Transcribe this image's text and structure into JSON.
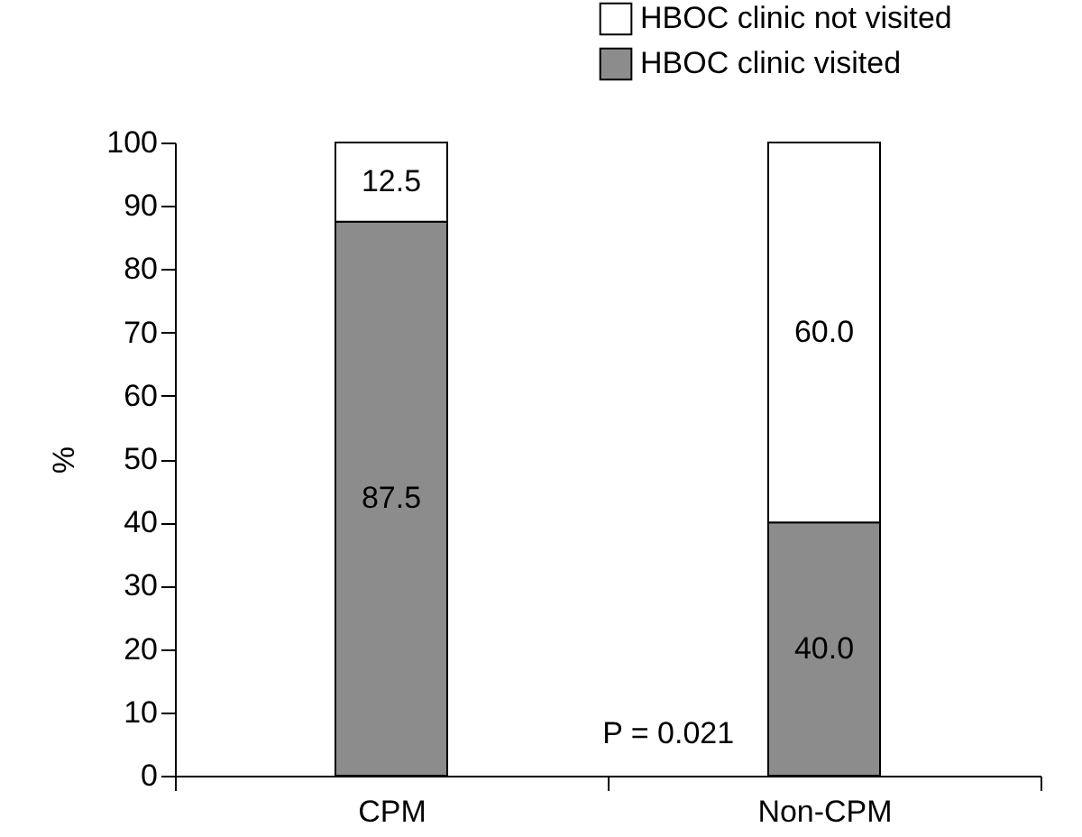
{
  "chart_data": {
    "type": "bar",
    "stacked": true,
    "ylabel": "%",
    "categories": [
      "CPM",
      "Non-CPM"
    ],
    "series": [
      {
        "name": "HBOC clinic visited",
        "color": "#8c8c8c",
        "values": [
          87.5,
          40.0
        ],
        "value_labels": [
          "87.5",
          "40.0"
        ]
      },
      {
        "name": "HBOC clinic not visited",
        "color": "#ffffff",
        "values": [
          12.5,
          60.0
        ],
        "value_labels": [
          "12.5",
          "60.0"
        ]
      }
    ],
    "ylim": [
      0,
      100
    ],
    "yticks": [
      0,
      10,
      20,
      30,
      40,
      50,
      60,
      70,
      80,
      90,
      100
    ],
    "grid": false,
    "legend": "top right",
    "annotations": [
      "P = 0.021"
    ]
  }
}
